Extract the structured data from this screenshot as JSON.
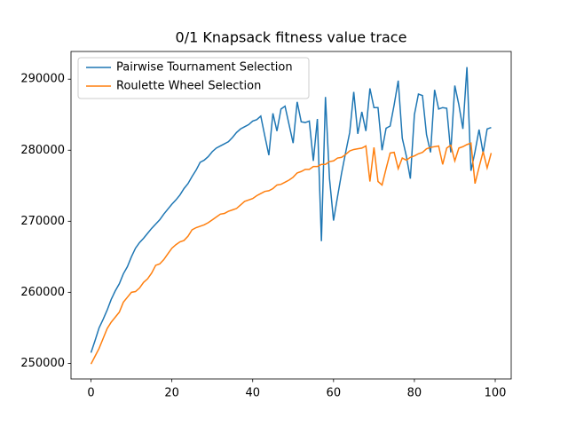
{
  "chart_data": {
    "type": "line",
    "title": "0/1 Knapsack fitness value trace",
    "x": [
      0,
      1,
      2,
      3,
      4,
      5,
      6,
      7,
      8,
      9,
      10,
      11,
      12,
      13,
      14,
      15,
      16,
      17,
      18,
      19,
      20,
      21,
      22,
      23,
      24,
      25,
      26,
      27,
      28,
      29,
      30,
      31,
      32,
      33,
      34,
      35,
      36,
      37,
      38,
      39,
      40,
      41,
      42,
      43,
      44,
      45,
      46,
      47,
      48,
      49,
      50,
      51,
      52,
      53,
      54,
      55,
      56,
      57,
      58,
      59,
      60,
      61,
      62,
      63,
      64,
      65,
      66,
      67,
      68,
      69,
      70,
      71,
      72,
      73,
      74,
      75,
      76,
      77,
      78,
      79,
      80,
      81,
      82,
      83,
      84,
      85,
      86,
      87,
      88,
      89,
      90,
      91,
      92,
      93,
      94,
      95,
      96,
      97,
      98,
      99
    ],
    "series": [
      {
        "name": "Pairwise Tournament Selection",
        "color": "#1f77b4",
        "values": [
          251500,
          253200,
          255000,
          256200,
          257500,
          259000,
          260200,
          261200,
          262600,
          263600,
          265000,
          266200,
          267000,
          267600,
          268300,
          269000,
          269600,
          270200,
          271000,
          271700,
          272400,
          273000,
          273700,
          274600,
          275300,
          276300,
          277200,
          278300,
          278600,
          279100,
          279800,
          280300,
          280600,
          280900,
          281200,
          281800,
          282500,
          283000,
          283300,
          283600,
          284100,
          284300,
          284800,
          282000,
          279300,
          285200,
          282700,
          285800,
          286200,
          283600,
          281000,
          286800,
          284000,
          283900,
          284100,
          278500,
          284400,
          267200,
          287500,
          276000,
          270100,
          273500,
          276800,
          279700,
          282500,
          288200,
          282300,
          285400,
          282700,
          288700,
          286000,
          286000,
          280000,
          283100,
          283400,
          286400,
          289800,
          281700,
          279200,
          276000,
          285000,
          287900,
          287700,
          282200,
          279700,
          288500,
          285800,
          286000,
          285900,
          279700,
          289100,
          286400,
          283000,
          291700,
          277100,
          279800,
          282900,
          279600,
          283000,
          283200
        ]
      },
      {
        "name": "Roulette Wheel Selection",
        "color": "#ff7f0e",
        "values": [
          249900,
          251000,
          252100,
          253500,
          254900,
          255800,
          256500,
          257200,
          258600,
          259300,
          260000,
          260100,
          260600,
          261400,
          261900,
          262700,
          263800,
          264000,
          264600,
          265400,
          266200,
          266700,
          267100,
          267300,
          267900,
          268800,
          269100,
          269300,
          269500,
          269800,
          270200,
          270600,
          271000,
          271100,
          271400,
          271600,
          271800,
          272300,
          272800,
          273000,
          273200,
          273600,
          273900,
          274200,
          274300,
          274600,
          275100,
          275200,
          275500,
          275800,
          276200,
          276800,
          277000,
          277300,
          277300,
          277700,
          277700,
          278000,
          278000,
          278400,
          278500,
          278900,
          279000,
          279400,
          279900,
          280100,
          280200,
          280300,
          280600,
          275600,
          280400,
          275600,
          275100,
          277400,
          279600,
          279700,
          277400,
          278900,
          278600,
          279000,
          279200,
          279500,
          279700,
          280200,
          280400,
          280500,
          280600,
          278000,
          280300,
          280700,
          278500,
          280300,
          280500,
          280800,
          281000,
          275300,
          277600,
          279800,
          277500,
          279600
        ]
      }
    ],
    "xlim": [
      -4.95,
      103.95
    ],
    "xticks": [
      0,
      20,
      40,
      60,
      80,
      100
    ],
    "ylim": [
      247800,
      293900
    ],
    "yticks": [
      250000,
      260000,
      270000,
      280000,
      290000
    ],
    "legend": "upper left"
  }
}
